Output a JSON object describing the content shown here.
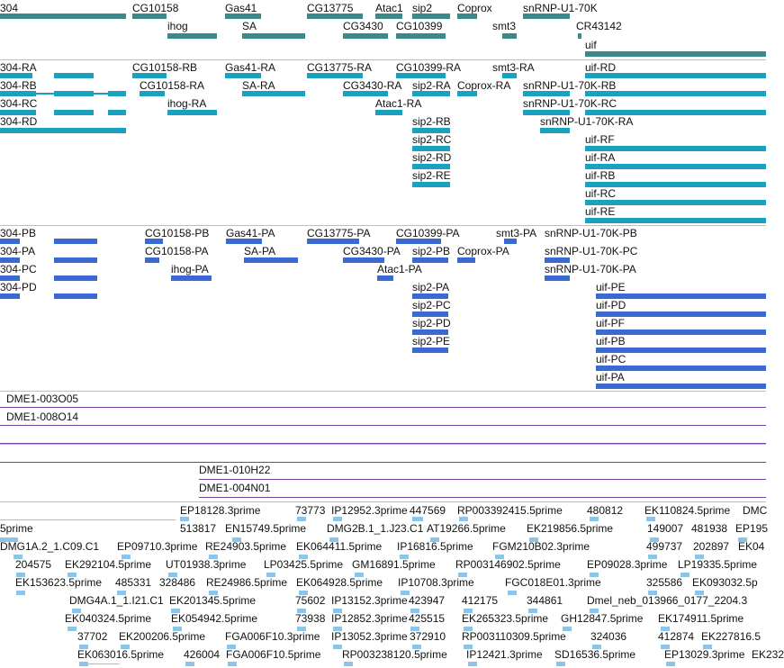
{
  "colors": {
    "gene": "#3b8a8a",
    "transcript": "#1aa0c0",
    "protein": "#3a6ad0",
    "clone": "#7a3fa0",
    "est": "#8ec4e8",
    "separator": "#bdbdbd"
  },
  "gene_track": {
    "labels": [
      "304",
      "CG10158",
      "Gas41",
      "CG13775",
      "Atac1",
      "sip2",
      "Coprox",
      "snRNP-U1-70K",
      "ihog",
      "SA",
      "CG3430",
      "CG10399",
      "smt3",
      "CR43142",
      "uif"
    ]
  },
  "transcript_track": {
    "labels": [
      "304-RA",
      "CG10158-RB",
      "Gas41-RA",
      "CG13775-RA",
      "CG10399-RA",
      "smt3-RA",
      "uif-RD",
      "304-RB",
      "CG10158-RA",
      "SA-RA",
      "CG3430-RA",
      "sip2-RA",
      "Coprox-RA",
      "snRNP-U1-70K-RB",
      "304-RC",
      "ihog-RA",
      "Atac1-RA",
      "snRNP-U1-70K-RC",
      "304-RD",
      "sip2-RB",
      "snRNP-U1-70K-RA",
      "sip2-RC",
      "uif-RF",
      "sip2-RD",
      "uif-RA",
      "sip2-RE",
      "uif-RB",
      "uif-RC",
      "uif-RE"
    ]
  },
  "protein_track": {
    "labels": [
      "304-PB",
      "CG10158-PB",
      "Gas41-PA",
      "CG13775-PA",
      "CG10399-PA",
      "smt3-PA",
      "snRNP-U1-70K-PB",
      "304-PA",
      "CG10158-PA",
      "SA-PA",
      "CG3430-PA",
      "sip2-PB",
      "Coprox-PA",
      "snRNP-U1-70K-PC",
      "304-PC",
      "ihog-PA",
      "Atac1-PA",
      "snRNP-U1-70K-PA",
      "304-PD",
      "sip2-PA",
      "uif-PE",
      "sip2-PC",
      "uif-PD",
      "sip2-PD",
      "uif-PF",
      "sip2-PE",
      "uif-PB",
      "uif-PC",
      "uif-PA"
    ]
  },
  "clone_track_1": {
    "labels": [
      "DME1-003O05",
      "DME1-008O14"
    ]
  },
  "clone_track_2": {
    "labels": [
      "DME1-010H22",
      "DME1-004N01"
    ]
  },
  "est_track": {
    "labels": [
      "EP18128.3prime",
      "73773",
      "IP12952.3prime",
      "447569",
      "RP003392415.5prime",
      "480812",
      "EK110824.5prime",
      "DMC",
      "5prime",
      "513817",
      "EN15749.5prime",
      "DMG2B.1_1.J23.C1",
      "AT19266.5prime",
      "EK219856.5prime",
      "149007",
      "481938",
      "EP195",
      "DMG1A.2_1.C09.C1",
      "EP09710.3prime",
      "RE24903.5prime",
      "EK064411.5prime",
      "IP16816.5prime",
      "FGM210B02.3prime",
      "499737",
      "202897",
      "EK04",
      "204575",
      "EK292104.5prime",
      "UT01938.3prime",
      "LP03425.5prime",
      "GM16891.5prime",
      "RP003146902.5prime",
      "EP09028.3prime",
      "LP19335.5prime",
      "EK153623.5prime",
      "485331",
      "328486",
      "RE24986.5prime",
      "EK064928.5prime",
      "IP10708.3prime",
      "FGC018E01.3prime",
      "325586",
      "EK093032.5p",
      "DMG4A.1_1.I21.C1",
      "EK201345.5prime",
      "75602",
      "IP13152.3prime",
      "423947",
      "412175",
      "344861",
      "Dmel_neb_013966_0177_2204.3",
      "EK040324.5prime",
      "EK054942.5prime",
      "73938",
      "IP12852.3prime",
      "425515",
      "EK265323.5prime",
      "GH12847.5prime",
      "EK174911.5prime",
      "37702",
      "EK200206.5prime",
      "FGA006F10.3prime",
      "IP13052.3prime",
      "372910",
      "RP003110309.5prime",
      "324036",
      "412874",
      "EK227816.5",
      "EK063016.5prime",
      "426004",
      "FGA006F10.5prime",
      "RP003238120.5prime",
      "IP12421.3prime",
      "SD16536.5prime",
      "EP13029.3prime",
      "EK232"
    ]
  }
}
